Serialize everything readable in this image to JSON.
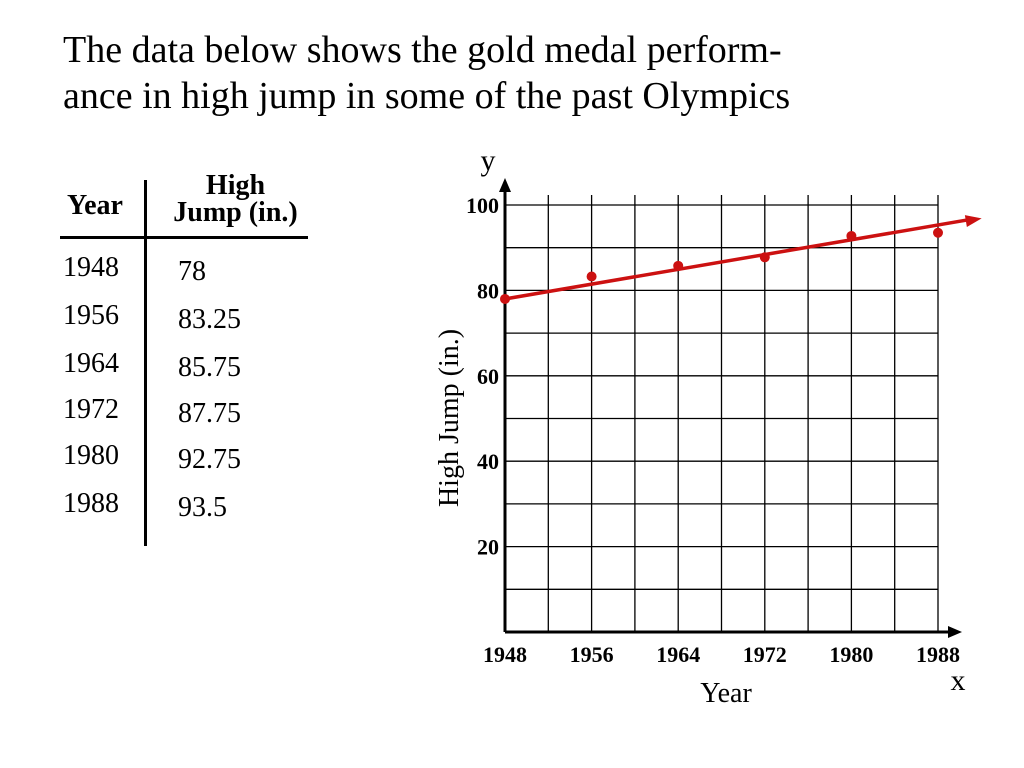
{
  "heading": {
    "line1": "The data below shows the gold medal perform-",
    "line2": "ance in high jump in some of the past Olympics"
  },
  "table": {
    "col_year": "Year",
    "col_jump_line1": "High",
    "col_jump_line2": "Jump (in.)",
    "rows": [
      {
        "year": "1948",
        "jump": "78"
      },
      {
        "year": "1956",
        "jump": "83.25"
      },
      {
        "year": "1964",
        "jump": "85.75"
      },
      {
        "year": "1972",
        "jump": "87.75"
      },
      {
        "year": "1980",
        "jump": "92.75"
      },
      {
        "year": "1988",
        "jump": "93.5"
      }
    ]
  },
  "chart_data": {
    "type": "scatter",
    "title": "",
    "xlabel": "Year",
    "ylabel": "High Jump (in.)",
    "x_axis_letter": "x",
    "y_axis_letter": "y",
    "xlim": [
      1948,
      1988
    ],
    "ylim": [
      0,
      100
    ],
    "x_ticks": [
      1948,
      1956,
      1964,
      1972,
      1980,
      1988
    ],
    "y_ticks": [
      20,
      40,
      60,
      80,
      100
    ],
    "grid": true,
    "points": [
      {
        "x": 1948,
        "y": 78
      },
      {
        "x": 1956,
        "y": 83.25
      },
      {
        "x": 1964,
        "y": 85.75
      },
      {
        "x": 1972,
        "y": 87.75
      },
      {
        "x": 1980,
        "y": 92.75
      },
      {
        "x": 1988,
        "y": 93.5
      }
    ],
    "trend_line": {
      "x": [
        1948,
        1990
      ],
      "y": [
        78,
        96
      ]
    },
    "colors": {
      "points": "#cc1111",
      "trend": "#cc1111",
      "axes": "#000000"
    }
  }
}
